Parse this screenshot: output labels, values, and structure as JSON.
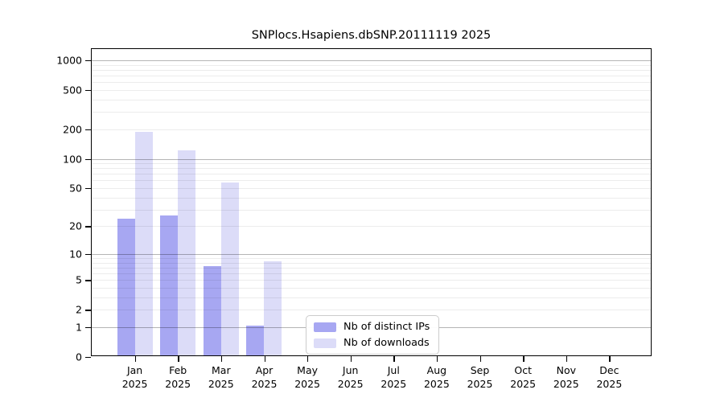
{
  "chart_data": {
    "type": "bar",
    "title": "SNPlocs.Hsapiens.dbSNP.20111119 2025",
    "year": "2025",
    "categories": [
      "Jan",
      "Feb",
      "Mar",
      "Apr",
      "May",
      "Jun",
      "Jul",
      "Aug",
      "Sep",
      "Oct",
      "Nov",
      "Dec"
    ],
    "series": [
      {
        "name": "Nb of distinct IPs",
        "color": "#a7a7f2",
        "values": [
          23,
          25,
          7,
          1,
          0,
          0,
          0,
          0,
          0,
          0,
          0,
          0
        ]
      },
      {
        "name": "Nb of downloads",
        "color": "#dcdcf8",
        "values": [
          180,
          118,
          55,
          8,
          0,
          0,
          0,
          0,
          0,
          0,
          0,
          0
        ]
      }
    ],
    "yscale": "log1p",
    "yticks": [
      0,
      1,
      2,
      5,
      10,
      20,
      50,
      100,
      200,
      500,
      1000
    ],
    "ylim": [
      0,
      1300
    ],
    "grid": true,
    "legend_position": "inside-bottom-center",
    "axis_color": "#000000",
    "major_grid_color": "#b5b5b5",
    "minor_grid_color": "#ededed"
  }
}
